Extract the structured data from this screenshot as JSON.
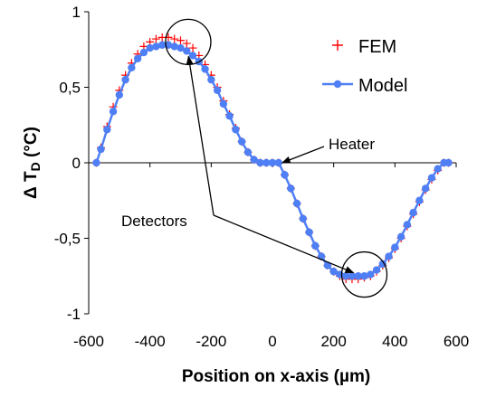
{
  "chart_data": {
    "type": "scatter",
    "title": "",
    "xlabel": "Position on x-axis (µm)",
    "ylabel_main": "Δ T",
    "ylabel_sub": "D",
    "ylabel_unit": "(°C)",
    "xlim": [
      -600,
      600
    ],
    "ylim": [
      -1,
      1
    ],
    "x_ticks": [
      -600,
      -400,
      -200,
      0,
      200,
      400,
      600
    ],
    "x_tick_labels": [
      "-600",
      "-400",
      "-200",
      "0",
      "200",
      "400",
      "600"
    ],
    "y_ticks": [
      1,
      0.5,
      0,
      -0.5,
      -1
    ],
    "y_tick_labels": [
      "1",
      "0,5",
      "0",
      "-0,5",
      "-1"
    ],
    "grid": false,
    "legend_position": "top-right",
    "series": [
      {
        "name": "FEM",
        "marker": "plus",
        "color": "#ff0000",
        "x": [
          -575,
          -560,
          -540,
          -520,
          -500,
          -480,
          -460,
          -440,
          -420,
          -400,
          -380,
          -360,
          -340,
          -320,
          -300,
          -280,
          -260,
          -240,
          -220,
          -200,
          -180,
          -160,
          -140,
          -120,
          -100,
          -80,
          -60,
          -40,
          -20,
          0,
          20,
          40,
          60,
          80,
          100,
          120,
          140,
          160,
          180,
          200,
          220,
          240,
          260,
          280,
          300,
          320,
          340,
          360,
          380,
          400,
          420,
          440,
          460,
          480,
          500,
          520,
          540,
          560,
          575
        ],
        "y": [
          0.0,
          0.1,
          0.24,
          0.37,
          0.48,
          0.58,
          0.66,
          0.72,
          0.77,
          0.8,
          0.82,
          0.83,
          0.83,
          0.82,
          0.81,
          0.79,
          0.76,
          0.71,
          0.65,
          0.58,
          0.5,
          0.41,
          0.32,
          0.23,
          0.14,
          0.07,
          0.02,
          0.0,
          0.0,
          0.0,
          0.0,
          -0.08,
          -0.17,
          -0.27,
          -0.37,
          -0.46,
          -0.55,
          -0.62,
          -0.68,
          -0.72,
          -0.75,
          -0.77,
          -0.77,
          -0.77,
          -0.76,
          -0.75,
          -0.72,
          -0.68,
          -0.63,
          -0.57,
          -0.5,
          -0.42,
          -0.34,
          -0.26,
          -0.18,
          -0.11,
          -0.05,
          0.0,
          0.0
        ]
      },
      {
        "name": "Model",
        "marker": "circle-line",
        "color": "#4f7ff5",
        "x": [
          -575,
          -560,
          -540,
          -520,
          -500,
          -480,
          -460,
          -440,
          -420,
          -400,
          -380,
          -360,
          -340,
          -320,
          -300,
          -280,
          -260,
          -240,
          -220,
          -200,
          -180,
          -160,
          -140,
          -120,
          -100,
          -80,
          -60,
          -40,
          -20,
          0,
          20,
          40,
          60,
          80,
          100,
          120,
          140,
          160,
          180,
          200,
          220,
          240,
          260,
          280,
          300,
          320,
          340,
          360,
          380,
          400,
          420,
          440,
          460,
          480,
          500,
          520,
          540,
          560,
          575
        ],
        "y": [
          0.0,
          0.09,
          0.22,
          0.34,
          0.45,
          0.55,
          0.63,
          0.69,
          0.73,
          0.76,
          0.77,
          0.78,
          0.78,
          0.77,
          0.76,
          0.74,
          0.71,
          0.67,
          0.62,
          0.55,
          0.48,
          0.39,
          0.31,
          0.22,
          0.14,
          0.07,
          0.02,
          0.0,
          0.0,
          0.0,
          0.0,
          -0.08,
          -0.17,
          -0.27,
          -0.37,
          -0.46,
          -0.55,
          -0.62,
          -0.68,
          -0.72,
          -0.74,
          -0.75,
          -0.75,
          -0.75,
          -0.75,
          -0.74,
          -0.71,
          -0.67,
          -0.62,
          -0.56,
          -0.49,
          -0.41,
          -0.33,
          -0.25,
          -0.17,
          -0.1,
          -0.04,
          0.0,
          0.0
        ]
      }
    ],
    "annotations": {
      "heater": {
        "text": "Heater",
        "points_to": [
          20,
          0.0
        ]
      },
      "detectors": {
        "text": "Detectors",
        "points_to": [
          [
            -280,
            0.8
          ],
          [
            300,
            -0.74
          ]
        ]
      },
      "circles": [
        [
          -275,
          0.8
        ],
        [
          300,
          -0.74
        ]
      ]
    }
  }
}
